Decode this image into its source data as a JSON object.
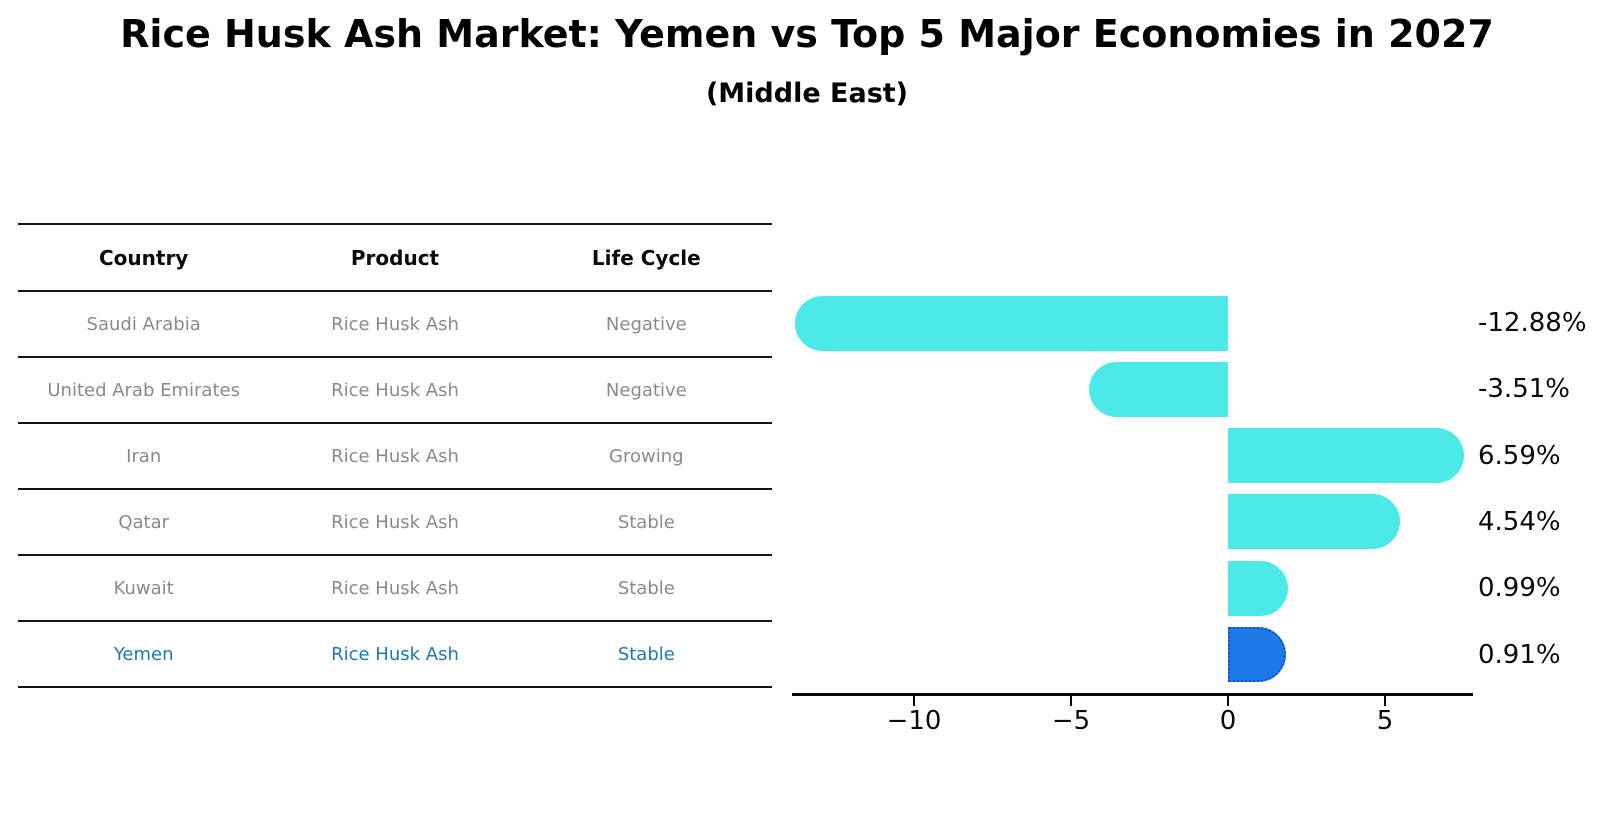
{
  "title": "Rice Husk Ash Market: Yemen vs Top 5 Major Economies in 2027",
  "subtitle": "(Middle East)",
  "table": {
    "headers": [
      "Country",
      "Product",
      "Life Cycle"
    ],
    "rows": [
      {
        "country": "Saudi Arabia",
        "product": "Rice Husk Ash",
        "life_cycle": "Negative",
        "highlight": false
      },
      {
        "country": "United Arab Emirates",
        "product": "Rice Husk Ash",
        "life_cycle": "Negative",
        "highlight": false
      },
      {
        "country": "Iran",
        "product": "Rice Husk Ash",
        "life_cycle": "Growing",
        "highlight": false
      },
      {
        "country": "Qatar",
        "product": "Rice Husk Ash",
        "life_cycle": "Stable",
        "highlight": false
      },
      {
        "country": "Kuwait",
        "product": "Rice Husk Ash",
        "life_cycle": "Stable",
        "highlight": false
      },
      {
        "country": "Yemen",
        "product": "Rice Husk Ash",
        "life_cycle": "Stable",
        "highlight": true
      }
    ]
  },
  "chart_data": {
    "type": "bar",
    "orientation": "horizontal",
    "title": "Rice Husk Ash Market: Yemen vs Top 5 Major Economies in 2027 (Middle East)",
    "categories": [
      "Saudi Arabia",
      "United Arab Emirates",
      "Iran",
      "Qatar",
      "Kuwait",
      "Yemen"
    ],
    "values": [
      -12.88,
      -3.51,
      6.59,
      4.54,
      0.99,
      0.91
    ],
    "value_labels": [
      "-12.88%",
      "-3.51%",
      "6.59%",
      "4.54%",
      "0.99%",
      "0.91%"
    ],
    "unit": "%",
    "x_ticks": [
      -10,
      -5,
      0,
      5
    ],
    "x_tick_labels": [
      "−10",
      "−5",
      "0",
      "5"
    ],
    "xlim": [
      -13.9,
      7.8
    ],
    "grid": false,
    "legend": "none",
    "highlight_index": 5
  },
  "colors": {
    "bar_fill": "#4DE9E9",
    "highlight_bar_fill": "#1E78E6",
    "highlight_bar_border": "#1254CB",
    "highlight_text": "#1f77b4",
    "table_text": "#8a8a8a",
    "line": "#141414"
  }
}
